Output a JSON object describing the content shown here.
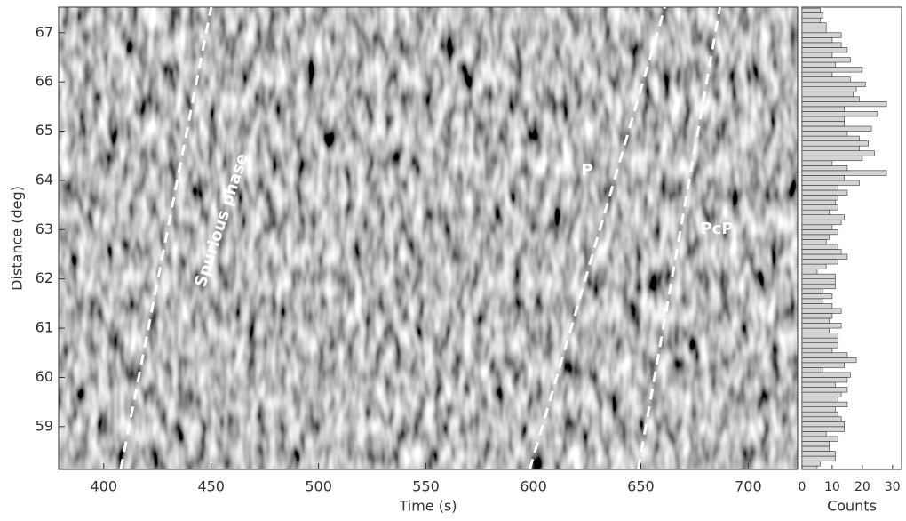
{
  "chart_data": [
    {
      "type": "line",
      "xlabel": "Time (s)",
      "ylabel": "Distance (deg)",
      "xlim": [
        379,
        723
      ],
      "xticks": [
        400,
        450,
        500,
        550,
        600,
        650,
        700
      ],
      "ylim": [
        58.13,
        67.52
      ],
      "yticks": [
        59,
        60,
        61,
        62,
        63,
        64,
        65,
        66,
        67
      ],
      "series": [
        {
          "name": "Spurious phase",
          "color": "#ffffff",
          "x": [
            407.9,
            450
          ],
          "values": [
            58.13,
            67.52
          ]
        },
        {
          "name": "P",
          "color": "#ffffff",
          "x": [
            598.3,
            661.2
          ],
          "values": [
            58.13,
            67.52
          ]
        },
        {
          "name": "PcP",
          "color": "#ffffff",
          "x": [
            648.8,
            686.8
          ],
          "values": [
            58.13,
            67.52
          ]
        }
      ]
    },
    {
      "type": "histogram",
      "orientation": "horizontal",
      "xlabel": "Counts",
      "color": "#d4d4d4",
      "xlim": [
        0,
        33
      ],
      "xticks": [
        0,
        10,
        20,
        30
      ],
      "ylim": [
        58.13,
        67.52
      ],
      "bins": [
        58.1,
        58.2,
        58.3,
        58.4,
        58.5,
        58.6,
        58.7,
        58.8,
        58.9,
        59.0,
        59.1,
        59.2,
        59.3,
        59.4,
        59.5,
        59.6,
        59.7,
        59.8,
        59.9,
        60.0,
        60.1,
        60.2,
        60.3,
        60.4,
        60.5,
        60.6,
        60.7,
        60.8,
        60.9,
        61.0,
        61.1,
        61.2,
        61.3,
        61.4,
        61.5,
        61.6,
        61.7,
        61.8,
        61.9,
        62.0,
        62.1,
        62.2,
        62.3,
        62.4,
        62.5,
        62.6,
        62.7,
        62.8,
        62.9,
        63.0,
        63.1,
        63.2,
        63.3,
        63.4,
        63.5,
        63.6,
        63.7,
        63.8,
        63.9,
        64.0,
        64.1,
        64.2,
        64.3,
        64.4,
        64.5,
        64.6,
        64.7,
        64.8,
        64.9,
        65.0,
        65.1,
        65.2,
        65.3,
        65.4,
        65.5,
        65.6,
        65.7,
        65.8,
        65.9,
        66.0,
        66.1,
        66.2,
        66.3,
        66.4,
        66.5,
        66.6,
        66.7,
        66.8,
        66.9,
        67.0,
        67.1,
        67.2,
        67.3,
        67.4,
        67.5
      ],
      "values": [
        5,
        6,
        11,
        11,
        9,
        9,
        12,
        8,
        14,
        14,
        13,
        12,
        11,
        15,
        12,
        13,
        15,
        11,
        15,
        16,
        7,
        14,
        18,
        15,
        10,
        12,
        12,
        12,
        9,
        13,
        9,
        10,
        13,
        10,
        7,
        10,
        7,
        11,
        11,
        11,
        5,
        8,
        12,
        15,
        13,
        12,
        8,
        9,
        12,
        10,
        13,
        14,
        9,
        12,
        11,
        12,
        15,
        12,
        19,
        14,
        28,
        15,
        10,
        20,
        24,
        19,
        22,
        19,
        15,
        23,
        14,
        14,
        25,
        14,
        28,
        19,
        17,
        18,
        21,
        16,
        10,
        20,
        11,
        16,
        10,
        15,
        13,
        10,
        13,
        8,
        8,
        6,
        7,
        6
      ]
    }
  ]
}
